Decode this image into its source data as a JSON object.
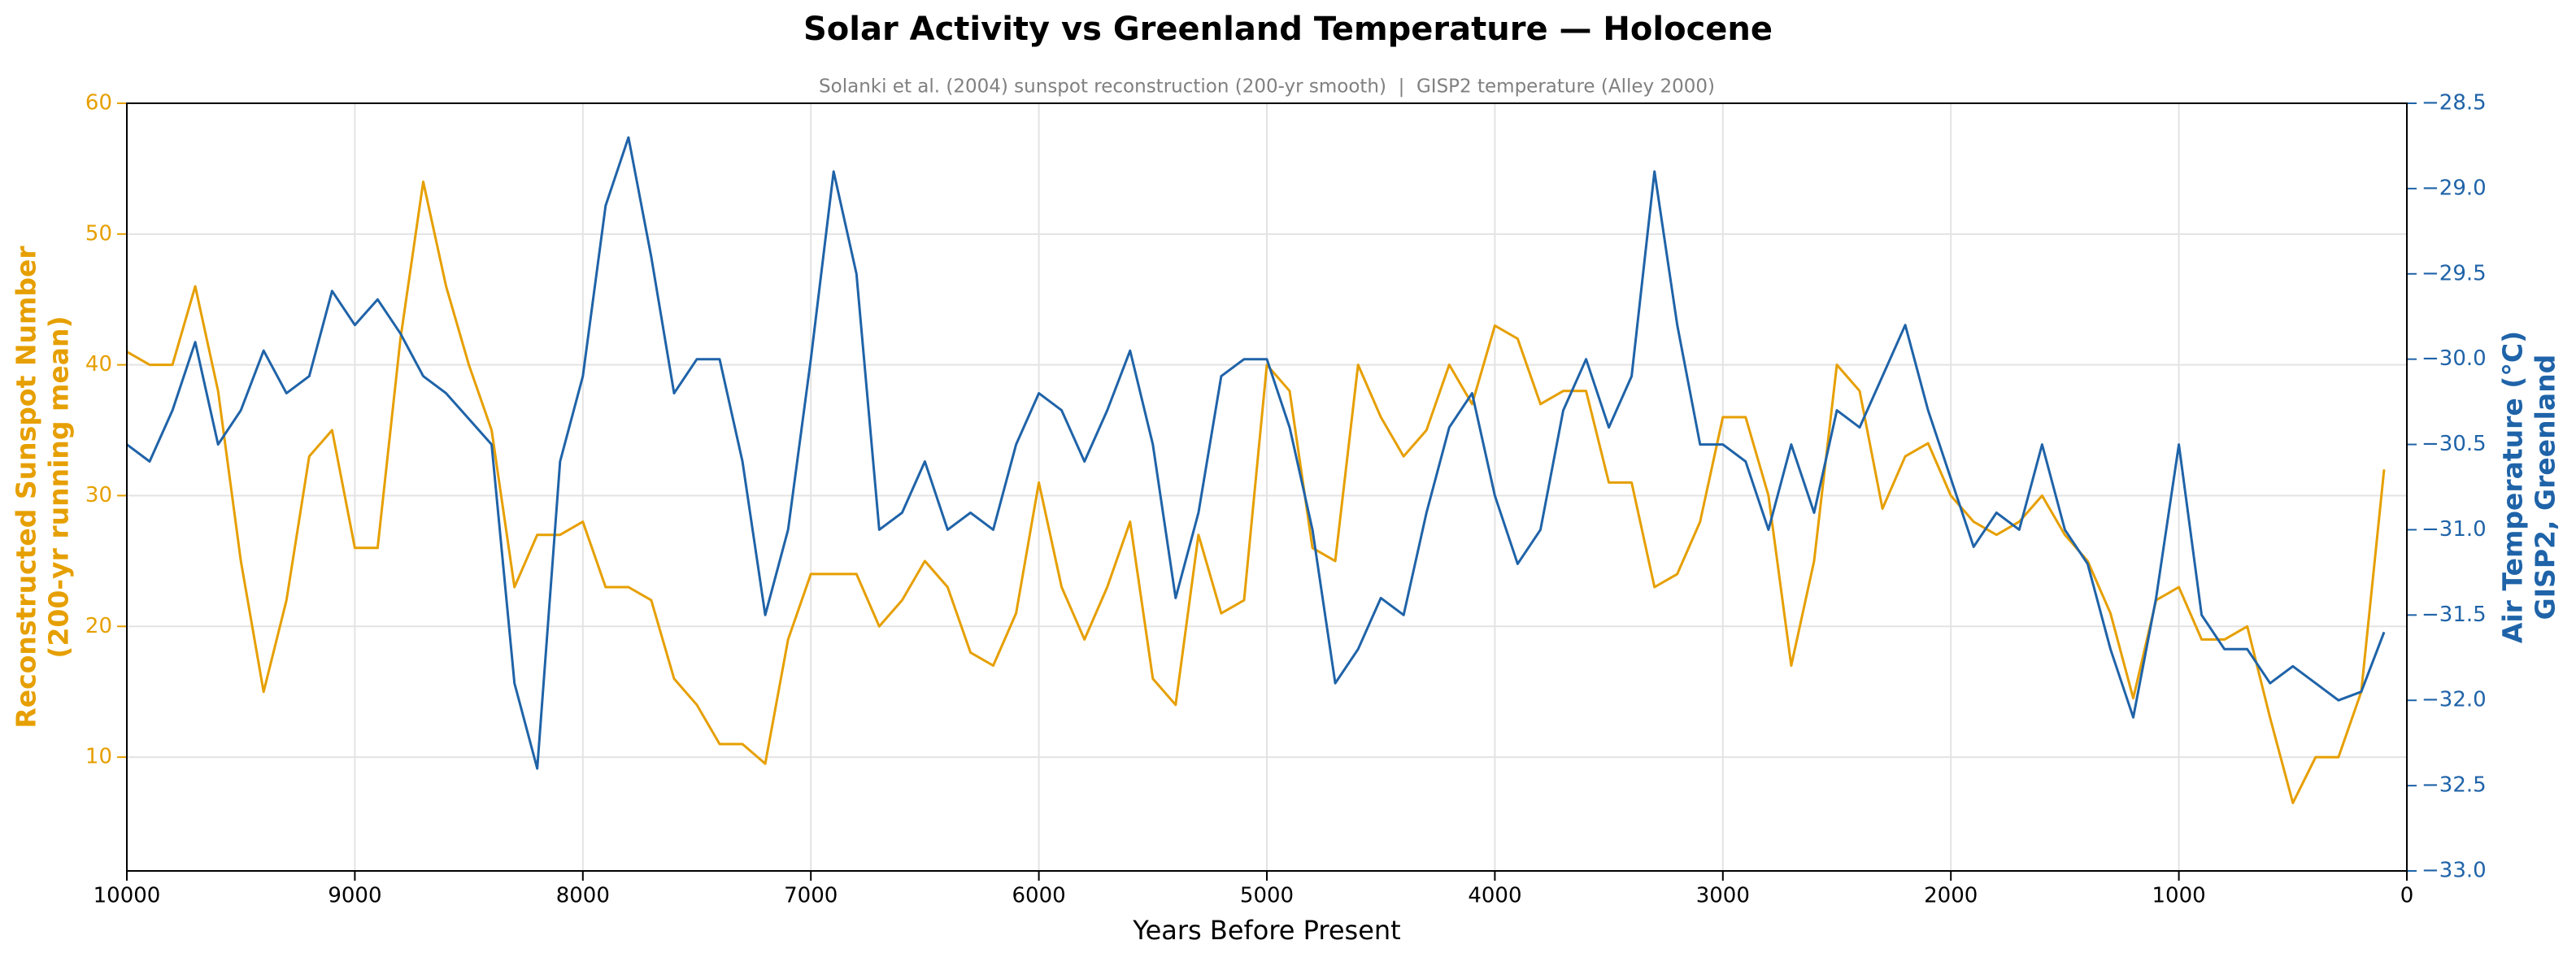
{
  "chart_data": {
    "type": "line",
    "title": "Solar Activity vs Greenland Temperature — Holocene",
    "subtitle": "Solanki et al. (2004) sunspot reconstruction (200-yr smooth)  |  GISP2 temperature (Alley 2000)",
    "xlabel": "Years Before Present",
    "ylabel": [
      "Reconstructed Sunspot Number",
      "(200-yr running mean)"
    ],
    "y2label": [
      "Air Temperature (°C)",
      "GISP2, Greenland"
    ],
    "xlim": [
      10000,
      0
    ],
    "xticks": [
      10000,
      9000,
      8000,
      7000,
      6000,
      5000,
      4000,
      3000,
      2000,
      1000,
      0
    ],
    "ylim": [
      1.3,
      60
    ],
    "yticks": [
      10,
      20,
      30,
      40,
      50,
      60
    ],
    "y2lim": [
      -33.0,
      -28.5
    ],
    "y2ticks": [
      {
        "value": -33.0,
        "label": "−33.0"
      },
      {
        "value": -32.5,
        "label": "−32.5"
      },
      {
        "value": -32.0,
        "label": "−32.0"
      },
      {
        "value": -31.5,
        "label": "−31.5"
      },
      {
        "value": -31.0,
        "label": "−31.0"
      },
      {
        "value": -30.5,
        "label": "−30.5"
      },
      {
        "value": -30.0,
        "label": "−30.0"
      },
      {
        "value": -29.5,
        "label": "−29.5"
      },
      {
        "value": -29.0,
        "label": "−29.0"
      },
      {
        "value": -28.5,
        "label": "−28.5"
      }
    ],
    "grid": true,
    "x": [
      10000,
      9900,
      9800,
      9700,
      9600,
      9500,
      9400,
      9300,
      9200,
      9100,
      9000,
      8900,
      8800,
      8700,
      8600,
      8500,
      8400,
      8300,
      8200,
      8100,
      8000,
      7900,
      7800,
      7700,
      7600,
      7500,
      7400,
      7300,
      7200,
      7100,
      7000,
      6900,
      6800,
      6700,
      6600,
      6500,
      6400,
      6300,
      6200,
      6100,
      6000,
      5900,
      5800,
      5700,
      5600,
      5500,
      5400,
      5300,
      5200,
      5100,
      5000,
      4900,
      4800,
      4700,
      4600,
      4500,
      4400,
      4300,
      4200,
      4100,
      4000,
      3900,
      3800,
      3700,
      3600,
      3500,
      3400,
      3300,
      3200,
      3100,
      3000,
      2900,
      2800,
      2700,
      2600,
      2500,
      2400,
      2300,
      2200,
      2100,
      2000,
      1900,
      1800,
      1700,
      1600,
      1500,
      1400,
      1300,
      1200,
      1100,
      1000,
      900,
      800,
      700,
      600,
      500,
      400,
      300,
      200,
      100
    ],
    "series": [
      {
        "color": "#e69f00",
        "axis": "y",
        "values": [
          41,
          40,
          40,
          46,
          38,
          25,
          15,
          22,
          33,
          35,
          26,
          26,
          42,
          54,
          46,
          40,
          35,
          23,
          27,
          27,
          28,
          23,
          23,
          22,
          16,
          14,
          11,
          11,
          9.5,
          19,
          24,
          24,
          24,
          20,
          22,
          25,
          23,
          18,
          17,
          21,
          31,
          23,
          19,
          23,
          28,
          16,
          14,
          27,
          21,
          22,
          40,
          38,
          26,
          25,
          40,
          36,
          33,
          35,
          40,
          37,
          43,
          42,
          37,
          38,
          38,
          31,
          31,
          23,
          24,
          28,
          36,
          36,
          30,
          17,
          25,
          40,
          38,
          29,
          33,
          34,
          30,
          28,
          27,
          28,
          30,
          27,
          25,
          21,
          14.5,
          22,
          23,
          19,
          19,
          20,
          13,
          6.5,
          10,
          10,
          15,
          32
        ]
      },
      {
        "color": "#1f63a8",
        "axis": "y2",
        "values": [
          -30.5,
          -30.6,
          -30.3,
          -29.9,
          -30.5,
          -30.3,
          -29.95,
          -30.2,
          -30.1,
          -29.6,
          -29.8,
          -29.65,
          -29.85,
          -30.1,
          -30.2,
          -30.35,
          -30.5,
          -31.9,
          -32.4,
          -30.6,
          -30.1,
          -29.1,
          -28.7,
          -29.4,
          -30.2,
          -30.0,
          -30.0,
          -30.6,
          -31.5,
          -31.0,
          -30.0,
          -28.9,
          -29.5,
          -31.0,
          -30.9,
          -30.6,
          -31.0,
          -30.9,
          -31.0,
          -30.5,
          -30.2,
          -30.3,
          -30.6,
          -30.3,
          -29.95,
          -30.5,
          -31.4,
          -30.9,
          -30.1,
          -30.0,
          -30.0,
          -30.4,
          -31.0,
          -31.9,
          -31.7,
          -31.4,
          -31.5,
          -30.9,
          -30.4,
          -30.2,
          -30.8,
          -31.2,
          -31.0,
          -30.3,
          -30.0,
          -30.4,
          -30.1,
          -28.9,
          -29.8,
          -30.5,
          -30.5,
          -30.6,
          -31.0,
          -30.5,
          -30.9,
          -30.3,
          -30.4,
          -30.1,
          -29.8,
          -30.3,
          -30.7,
          -31.1,
          -30.9,
          -31.0,
          -30.5,
          -31.0,
          -31.2,
          -31.7,
          -32.1,
          -31.4,
          -30.5,
          -31.5,
          -31.7,
          -31.7,
          -31.9,
          -31.8,
          -31.9,
          -32.0,
          -31.95,
          -31.6
        ]
      }
    ]
  }
}
